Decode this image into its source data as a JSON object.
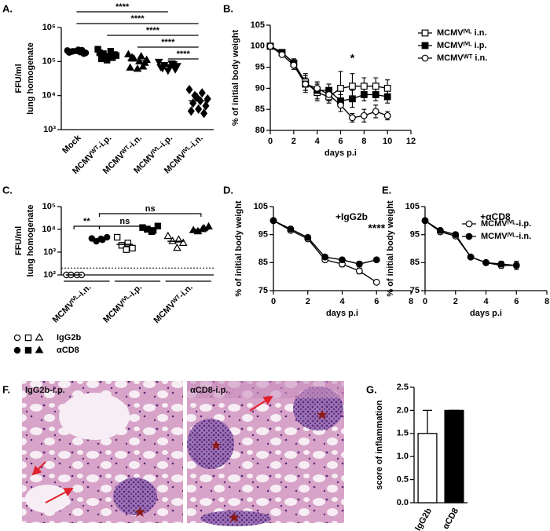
{
  "chart_data": [
    {
      "type": "strip",
      "panel_label": "A.",
      "ylabel": [
        "FFU/ml",
        "lung homogenate"
      ],
      "log_y": true,
      "ylim": [
        1000,
        1000000
      ],
      "yticks": [
        {
          "value": 1000,
          "label": "10³"
        },
        {
          "value": 10000,
          "label": "10⁴"
        },
        {
          "value": 100000,
          "label": "10⁵"
        },
        {
          "value": 1000000,
          "label": "10⁶"
        }
      ],
      "categories": [
        "Mock",
        "MCMVᵂᵀ-i.p.",
        "MCMVᵂᵀ-i.n.",
        "MCMVᴵⱽᴸ-i.p.",
        "MCMVᴵⱽᴸ-i.n."
      ],
      "markers": [
        "circle",
        "square",
        "triangle",
        "triangle-down",
        "diamond"
      ],
      "series": [
        {
          "color": "#000000",
          "filled": true,
          "values": [
            [
              210000,
              190000,
              200000,
              180000,
              220000,
              195000,
              170000,
              205000,
              185000,
              215000
            ],
            [
              230000,
              200000,
              170000,
              150000,
              140000,
              120000,
              160000,
              110000,
              180000,
              130000
            ],
            [
              160000,
              140000,
              120000,
              110000,
              100000,
              130000,
              90000,
              60000,
              65000,
              70000
            ],
            [
              100000,
              90000,
              80000,
              75000,
              70000,
              65000,
              60000,
              55000,
              70000,
              85000
            ],
            [
              15000,
              12000,
              10000,
              8000,
              7000,
              6000,
              5000,
              4000,
              3500,
              3000,
              9000
            ]
          ],
          "means": [
            197000,
            150000,
            105000,
            72000,
            7000
          ]
        }
      ],
      "comparisons": [
        {
          "label": "****",
          "from": 0,
          "to": 3
        },
        {
          "label": "****",
          "from": 0,
          "to": 4
        },
        {
          "label": "****",
          "from": 1,
          "to": 4
        },
        {
          "label": "****",
          "from": 2,
          "to": 4
        },
        {
          "label": "****",
          "from": 3,
          "to": 4
        }
      ]
    },
    {
      "type": "line",
      "panel_label": "B.",
      "ylabel": "% of initial body weight",
      "xlabel": "days p.i",
      "xlim": [
        0,
        12
      ],
      "xticks": [
        0,
        2,
        4,
        6,
        8,
        10,
        12
      ],
      "ylim": [
        80,
        105
      ],
      "yticks": [
        80,
        85,
        90,
        95,
        100,
        105
      ],
      "x": [
        0,
        1,
        2,
        3,
        4,
        5,
        6,
        7,
        8,
        9,
        10
      ],
      "legend": "outside-right",
      "series": [
        {
          "name": "MCMVᴵⱽᴸ i.n.",
          "color": "#000000",
          "marker": "square",
          "filled": false,
          "values": [
            100,
            98.5,
            96,
            91.5,
            89,
            88,
            90,
            90.5,
            90.5,
            90.5,
            90
          ],
          "errors": [
            0.5,
            0.5,
            1,
            2,
            2,
            1.5,
            4,
            3,
            2,
            2,
            2
          ]
        },
        {
          "name": "MCMVᴵⱽᴸ i.p.",
          "color": "#000000",
          "marker": "square",
          "filled": true,
          "values": [
            100,
            98.5,
            96,
            91,
            89.5,
            89.5,
            87,
            87.5,
            88.5,
            88.5,
            88
          ],
          "errors": [
            0.5,
            0.5,
            1,
            2,
            2,
            1.5,
            1.5,
            2,
            1.5,
            1.5,
            1.5
          ]
        },
        {
          "name": "MCMVᵂᵀ i.n.",
          "color": "#000000",
          "marker": "circle",
          "filled": false,
          "values": [
            100,
            98,
            95.5,
            91,
            90,
            88.5,
            86,
            83,
            83.5,
            84.5,
            83.5
          ],
          "errors": [
            0.5,
            0.5,
            1,
            1.5,
            1.5,
            1.5,
            1.5,
            1,
            1.5,
            1.5,
            1
          ]
        }
      ],
      "annotations": [
        {
          "text": "*",
          "x": 7,
          "y": 97
        }
      ]
    },
    {
      "type": "strip",
      "panel_label": "C.",
      "ylabel": [
        "FFU/ml",
        "lung homogenate"
      ],
      "log_y": true,
      "ylim": [
        100,
        100000
      ],
      "yticks": [
        {
          "value": 100,
          "label": "10²"
        },
        {
          "value": 1000,
          "label": "10³"
        },
        {
          "value": 10000,
          "label": "10⁴"
        },
        {
          "value": 100000,
          "label": "10⁵"
        }
      ],
      "reference_line": 200,
      "categories": [
        "MCMVᴵⱽᴸ-i.n.",
        "MCMVᴵⱽᴸ-i.p.",
        "MCMVᵂᵀ-i.n."
      ],
      "markers": [
        "circle",
        "square",
        "triangle"
      ],
      "series": [
        {
          "name": "IgG2b",
          "color": "#000000",
          "filled": false,
          "values": [
            [
              100,
              100,
              100,
              100
            ],
            [
              4500,
              2500,
              2000,
              1500,
              1300
            ],
            [
              5000,
              3500,
              3000,
              2500,
              1500
            ]
          ],
          "means": [
            100,
            2200,
            3000
          ]
        },
        {
          "name": "αCD8",
          "color": "#000000",
          "filled": true,
          "values": [
            [
              4000,
              3500,
              3000,
              4500,
              3800
            ],
            [
              12000,
              9000,
              10000,
              14000,
              8000
            ],
            [
              9000,
              11000,
              8000,
              13000,
              10000
            ]
          ],
          "means": [
            3700,
            10500,
            10000
          ]
        }
      ],
      "comparisons": [
        {
          "label": "ns",
          "from": 1,
          "to": 5
        },
        {
          "label": "ns",
          "from": 1,
          "to": 3
        },
        {
          "label": "**",
          "from": 0,
          "to": 1
        }
      ]
    },
    {
      "type": "line",
      "panel_label": "D.",
      "title": "+IgG2b",
      "ylabel": "% of initial body weight",
      "xlabel": "days p.i",
      "xlim": [
        0,
        8
      ],
      "xticks": [
        0,
        2,
        4,
        6,
        8
      ],
      "ylim": [
        75,
        105
      ],
      "yticks": [
        75,
        85,
        95,
        105
      ],
      "x": [
        0,
        1,
        2,
        3,
        4,
        5,
        6
      ],
      "series": [
        {
          "color": "#000000",
          "marker": "circle",
          "filled": false,
          "values": [
            100,
            96.5,
            93.5,
            86,
            84.5,
            82,
            78
          ],
          "errors": [
            0,
            0.5,
            0.5,
            0.5,
            1,
            1,
            0.5
          ]
        },
        {
          "color": "#000000",
          "marker": "circle",
          "filled": true,
          "values": [
            100,
            97,
            94,
            87,
            86,
            84.5,
            86
          ],
          "errors": [
            0,
            0.5,
            0.5,
            0.5,
            0.5,
            1,
            0.5
          ]
        }
      ],
      "annotations": [
        {
          "text": "****",
          "x": 6,
          "y": 97
        }
      ]
    },
    {
      "type": "line",
      "panel_label": "E.",
      "title": "+αCD8",
      "ylabel": "% of initial body weight",
      "xlabel": "days p.i",
      "xlim": [
        0,
        8
      ],
      "xticks": [
        0,
        2,
        4,
        6,
        8
      ],
      "ylim": [
        75,
        105
      ],
      "yticks": [
        75,
        85,
        95,
        105
      ],
      "x": [
        0,
        1,
        2,
        3,
        4,
        5,
        6
      ],
      "legend": "upper-right",
      "series": [
        {
          "name": "MCMVᴵⱽᴸ-i.p.",
          "color": "#000000",
          "marker": "circle",
          "filled": false,
          "values": [
            100,
            96,
            94.5,
            87,
            85,
            84,
            84
          ],
          "errors": [
            0,
            0.5,
            0.5,
            0.5,
            0.5,
            1,
            1.5
          ]
        },
        {
          "name": "MCMVᴵⱽᴸ-i.n.",
          "color": "#000000",
          "marker": "circle",
          "filled": true,
          "values": [
            100,
            96.5,
            95,
            87,
            85,
            84.5,
            84
          ],
          "errors": [
            0,
            0.5,
            0.5,
            0.5,
            0.5,
            1,
            1
          ]
        }
      ]
    },
    {
      "type": "bar",
      "panel_label": "G.",
      "ylabel": "score of inflammation",
      "ylim": [
        0,
        2.5
      ],
      "yticks": [
        {
          "value": 0,
          "label": "0.0"
        },
        {
          "value": 0.5,
          "label": "0.5"
        },
        {
          "value": 1,
          "label": "1.0"
        },
        {
          "value": 1.5,
          "label": "1.5"
        },
        {
          "value": 2,
          "label": "2.0"
        },
        {
          "value": 2.5,
          "label": "2.5"
        }
      ],
      "categories": [
        "IgG2b",
        "αCD8"
      ],
      "values": [
        1.5,
        2
      ],
      "errors": [
        0.5,
        0
      ],
      "colors": [
        "#ffffff",
        "#000000"
      ]
    }
  ],
  "image_panel": {
    "panel_label": "F.",
    "images": [
      {
        "caption": "IgG2b-i.p."
      },
      {
        "caption": "αCD8-i.p."
      }
    ]
  }
}
